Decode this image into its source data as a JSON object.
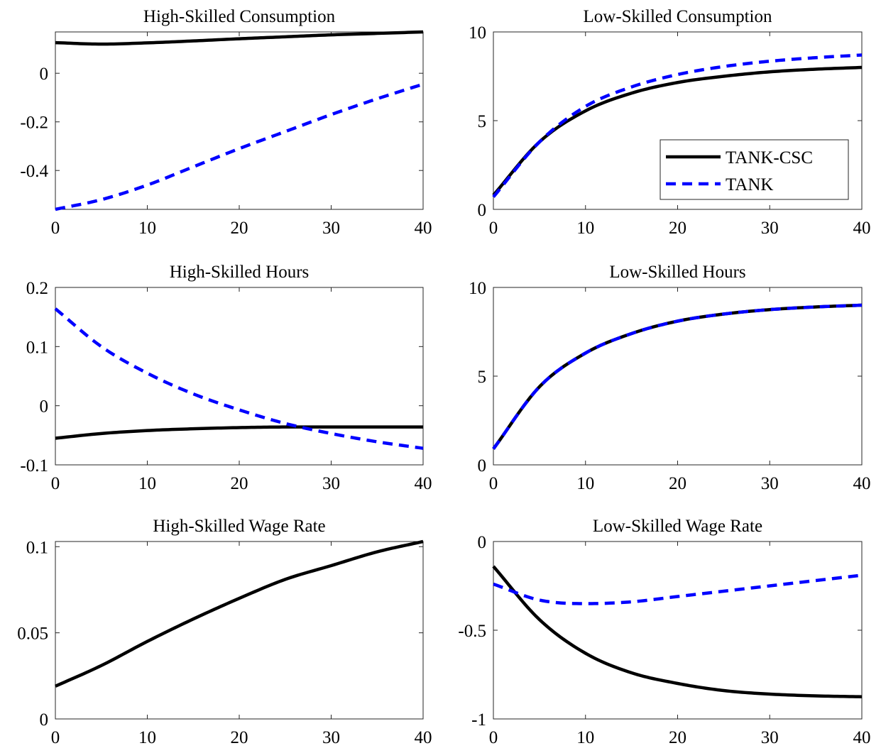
{
  "colors": {
    "tank_csc": "#000000",
    "tank": "#0000ff"
  },
  "legend": {
    "position": "inside, lower-right of the Low-Skilled Consumption panel",
    "entries": [
      {
        "label": "TANK-CSC",
        "color": "#000000",
        "style": "solid"
      },
      {
        "label": "TANK",
        "color": "#0000ff",
        "style": "dashed"
      }
    ]
  },
  "chart_data": [
    {
      "type": "line",
      "title": "High-Skilled Consumption",
      "xlabel": "",
      "ylabel": "",
      "xlim": [
        0,
        40
      ],
      "ylim": [
        -0.56,
        0.17
      ],
      "xticks": [
        0,
        10,
        20,
        30,
        40
      ],
      "yticks": [
        -0.4,
        -0.2,
        0
      ],
      "ytick_labels": [
        "-0.4",
        "-0.2",
        "0"
      ],
      "grid": false,
      "series": [
        {
          "name": "TANK-CSC",
          "color": "#000000",
          "style": "solid",
          "x": [
            0,
            5,
            10,
            15,
            20,
            25,
            30,
            35,
            40
          ],
          "y": [
            0.126,
            0.12,
            0.125,
            0.133,
            0.142,
            0.15,
            0.158,
            0.164,
            0.17
          ]
        },
        {
          "name": "TANK",
          "color": "#0000ff",
          "style": "dashed",
          "x": [
            0,
            5,
            10,
            15,
            20,
            25,
            30,
            35,
            40
          ],
          "y": [
            -0.56,
            -0.52,
            -0.46,
            -0.385,
            -0.31,
            -0.24,
            -0.17,
            -0.105,
            -0.045
          ]
        }
      ]
    },
    {
      "type": "line",
      "title": "Low-Skilled Consumption",
      "xlabel": "",
      "ylabel": "",
      "xlim": [
        0,
        40
      ],
      "ylim": [
        0,
        10
      ],
      "xticks": [
        0,
        10,
        20,
        30,
        40
      ],
      "yticks": [
        0,
        5,
        10
      ],
      "ytick_labels": [
        "0",
        "5",
        "10"
      ],
      "grid": false,
      "series": [
        {
          "name": "TANK-CSC",
          "color": "#000000",
          "style": "solid",
          "x": [
            0,
            5,
            10,
            15,
            20,
            25,
            30,
            35,
            40
          ],
          "y": [
            0.8,
            3.8,
            5.55,
            6.55,
            7.15,
            7.5,
            7.75,
            7.9,
            8.0
          ]
        },
        {
          "name": "TANK",
          "color": "#0000ff",
          "style": "dashed",
          "x": [
            0,
            5,
            10,
            15,
            20,
            25,
            30,
            35,
            40
          ],
          "y": [
            0.7,
            3.8,
            5.8,
            6.9,
            7.6,
            8.05,
            8.35,
            8.55,
            8.7
          ]
        }
      ]
    },
    {
      "type": "line",
      "title": "High-Skilled Hours",
      "xlabel": "",
      "ylabel": "",
      "xlim": [
        0,
        40
      ],
      "ylim": [
        -0.1,
        0.2
      ],
      "xticks": [
        0,
        10,
        20,
        30,
        40
      ],
      "yticks": [
        -0.1,
        0,
        0.1,
        0.2
      ],
      "ytick_labels": [
        "-0.1",
        "0",
        "0.1",
        "0.2"
      ],
      "grid": false,
      "series": [
        {
          "name": "TANK-CSC",
          "color": "#000000",
          "style": "solid",
          "x": [
            0,
            5,
            10,
            15,
            20,
            25,
            30,
            35,
            40
          ],
          "y": [
            -0.055,
            -0.047,
            -0.042,
            -0.039,
            -0.037,
            -0.036,
            -0.036,
            -0.036,
            -0.036
          ]
        },
        {
          "name": "TANK",
          "color": "#0000ff",
          "style": "dashed",
          "x": [
            0,
            5,
            10,
            15,
            20,
            25,
            30,
            35,
            40
          ],
          "y": [
            0.164,
            0.1,
            0.055,
            0.02,
            -0.007,
            -0.03,
            -0.047,
            -0.061,
            -0.072
          ]
        }
      ]
    },
    {
      "type": "line",
      "title": "Low-Skilled Hours",
      "xlabel": "",
      "ylabel": "",
      "xlim": [
        0,
        40
      ],
      "ylim": [
        0,
        10
      ],
      "xticks": [
        0,
        10,
        20,
        30,
        40
      ],
      "yticks": [
        0,
        5,
        10
      ],
      "ytick_labels": [
        "0",
        "5",
        "10"
      ],
      "grid": false,
      "series": [
        {
          "name": "TANK-CSC",
          "color": "#000000",
          "style": "solid",
          "x": [
            0,
            5,
            10,
            15,
            20,
            25,
            30,
            35,
            40
          ],
          "y": [
            0.9,
            4.4,
            6.3,
            7.4,
            8.1,
            8.5,
            8.75,
            8.9,
            9.0
          ]
        },
        {
          "name": "TANK",
          "color": "#0000ff",
          "style": "dashed",
          "x": [
            0,
            5,
            10,
            15,
            20,
            25,
            30,
            35,
            40
          ],
          "y": [
            0.9,
            4.4,
            6.3,
            7.4,
            8.1,
            8.5,
            8.75,
            8.9,
            9.0
          ]
        }
      ]
    },
    {
      "type": "line",
      "title": "High-Skilled Wage Rate",
      "xlabel": "",
      "ylabel": "",
      "xlim": [
        0,
        40
      ],
      "ylim": [
        0,
        0.103
      ],
      "xticks": [
        0,
        10,
        20,
        30,
        40
      ],
      "yticks": [
        0,
        0.05,
        0.1
      ],
      "ytick_labels": [
        "0",
        "0.05",
        "0.1"
      ],
      "grid": false,
      "series": [
        {
          "name": "TANK-CSC",
          "color": "#000000",
          "style": "solid",
          "x": [
            0,
            5,
            10,
            15,
            20,
            25,
            30,
            35,
            40
          ],
          "y": [
            0.019,
            0.031,
            0.045,
            0.058,
            0.07,
            0.081,
            0.089,
            0.097,
            0.103
          ]
        }
      ]
    },
    {
      "type": "line",
      "title": "Low-Skilled Wage Rate",
      "xlabel": "",
      "ylabel": "",
      "xlim": [
        0,
        40
      ],
      "ylim": [
        -1,
        0
      ],
      "xticks": [
        0,
        10,
        20,
        30,
        40
      ],
      "yticks": [
        -1,
        -0.5,
        0
      ],
      "ytick_labels": [
        "-1",
        "-0.5",
        "0"
      ],
      "grid": false,
      "series": [
        {
          "name": "TANK-CSC",
          "color": "#000000",
          "style": "solid",
          "x": [
            0,
            5,
            10,
            15,
            20,
            25,
            30,
            35,
            40
          ],
          "y": [
            -0.14,
            -0.44,
            -0.63,
            -0.74,
            -0.8,
            -0.84,
            -0.86,
            -0.87,
            -0.875
          ]
        },
        {
          "name": "TANK",
          "color": "#0000ff",
          "style": "dashed",
          "x": [
            0,
            5,
            10,
            15,
            20,
            25,
            30,
            35,
            40
          ],
          "y": [
            -0.24,
            -0.33,
            -0.35,
            -0.34,
            -0.31,
            -0.28,
            -0.25,
            -0.22,
            -0.19
          ]
        }
      ]
    }
  ]
}
